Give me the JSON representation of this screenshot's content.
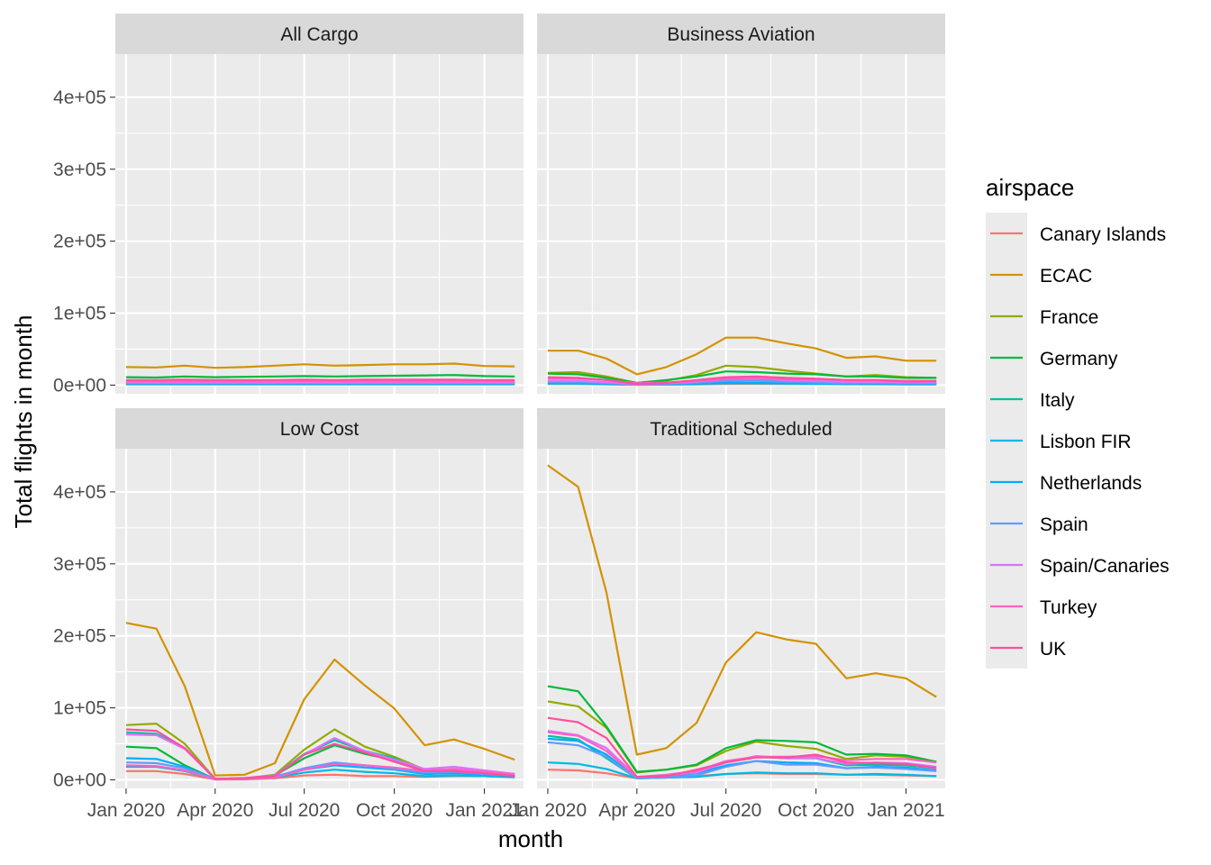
{
  "chart_data": {
    "type": "line",
    "xlabel": "month",
    "ylabel": "Total flights in month",
    "x": [
      "2020-01",
      "2020-02",
      "2020-03",
      "2020-04",
      "2020-05",
      "2020-06",
      "2020-07",
      "2020-08",
      "2020-09",
      "2020-10",
      "2020-11",
      "2020-12",
      "2021-01",
      "2021-02"
    ],
    "x_ticks": [
      {
        "value": "2020-01",
        "label": "Jan 2020"
      },
      {
        "value": "2020-04",
        "label": "Apr 2020"
      },
      {
        "value": "2020-07",
        "label": "Jul 2020"
      },
      {
        "value": "2020-10",
        "label": "Oct 2020"
      },
      {
        "value": "2021-01",
        "label": "Jan 2021"
      }
    ],
    "y_ticks": [
      {
        "value": 0,
        "label": "0e+00"
      },
      {
        "value": 100000,
        "label": "1e+05"
      },
      {
        "value": 200000,
        "label": "2e+05"
      },
      {
        "value": 300000,
        "label": "3e+05"
      },
      {
        "value": 400000,
        "label": "4e+05"
      }
    ],
    "ylim": [
      -12000,
      460000
    ],
    "xlim": [
      "2019-12-21",
      "2021-02-10"
    ],
    "grid": true,
    "legend": {
      "title": "airspace",
      "position": "right",
      "entries": [
        {
          "name": "Canary Islands",
          "color": "#F8766D"
        },
        {
          "name": "ECAC",
          "color": "#D39200"
        },
        {
          "name": "France",
          "color": "#93AA00"
        },
        {
          "name": "Germany",
          "color": "#00BA38"
        },
        {
          "name": "Italy",
          "color": "#00C19F"
        },
        {
          "name": "Lisbon FIR",
          "color": "#00B9E3"
        },
        {
          "name": "Netherlands",
          "color": "#00ADFA"
        },
        {
          "name": "Spain",
          "color": "#619CFF"
        },
        {
          "name": "Spain/Canaries",
          "color": "#DB72FB"
        },
        {
          "name": "Turkey",
          "color": "#FF61C3"
        },
        {
          "name": "UK",
          "color": "#FF4FA0"
        }
      ]
    },
    "panels": [
      {
        "title": "All Cargo",
        "series": [
          {
            "name": "Canary Islands",
            "values": [
              1000,
              1000,
              1000,
              900,
              900,
              900,
              900,
              900,
              900,
              900,
              900,
              900,
              900,
              900
            ]
          },
          {
            "name": "ECAC",
            "values": [
              25000,
              24500,
              27000,
              24000,
              25000,
              27000,
              29000,
              27000,
              28000,
              29000,
              29000,
              30000,
              26500,
              26000
            ]
          },
          {
            "name": "France",
            "values": [
              4000,
              4000,
              4000,
              4000,
              4000,
              4000,
              4000,
              4000,
              4000,
              4000,
              4000,
              4000,
              4000,
              4000
            ]
          },
          {
            "name": "Germany",
            "values": [
              11000,
              10500,
              12000,
              11000,
              11500,
              12000,
              12500,
              12000,
              12500,
              13000,
              13500,
              14000,
              12500,
              12000
            ]
          },
          {
            "name": "Italy",
            "values": [
              2000,
              2000,
              2000,
              2000,
              2000,
              2000,
              2000,
              2000,
              2000,
              2000,
              2000,
              2000,
              2000,
              2000
            ]
          },
          {
            "name": "Lisbon FIR",
            "values": [
              1500,
              1500,
              1500,
              1500,
              1500,
              1500,
              1500,
              1500,
              1500,
              1500,
              1500,
              1500,
              1500,
              1500
            ]
          },
          {
            "name": "Netherlands",
            "values": [
              2000,
              2000,
              2000,
              2000,
              2000,
              2000,
              2000,
              2000,
              2000,
              2000,
              2000,
              2000,
              2000,
              2000
            ]
          },
          {
            "name": "Spain",
            "values": [
              3000,
              3000,
              3000,
              3000,
              3000,
              3000,
              3000,
              3000,
              3000,
              3000,
              3000,
              3000,
              3000,
              3000
            ]
          },
          {
            "name": "Spain/Canaries",
            "values": [
              3500,
              3500,
              3500,
              3500,
              3500,
              3500,
              3500,
              3500,
              3500,
              3500,
              3500,
              3500,
              3500,
              3500
            ]
          },
          {
            "name": "Turkey",
            "values": [
              5000,
              5000,
              5000,
              5000,
              5000,
              5000,
              5000,
              5000,
              5000,
              5000,
              5000,
              5000,
              5000,
              5000
            ]
          },
          {
            "name": "UK",
            "values": [
              7000,
              7000,
              7500,
              7000,
              7000,
              7000,
              7500,
              7000,
              7500,
              7500,
              7500,
              7500,
              7000,
              7000
            ]
          }
        ]
      },
      {
        "title": "Business Aviation",
        "series": [
          {
            "name": "Canary Islands",
            "values": [
              1500,
              1500,
              1000,
              500,
              700,
              1000,
              1500,
              1500,
              1500,
              1500,
              1200,
              1200,
              1000,
              1000
            ]
          },
          {
            "name": "ECAC",
            "values": [
              48000,
              48000,
              37000,
              15000,
              25000,
              43000,
              66000,
              66000,
              58000,
              51000,
              38000,
              40000,
              34000,
              34000
            ]
          },
          {
            "name": "France",
            "values": [
              17000,
              18000,
              12000,
              3000,
              6000,
              14000,
              27000,
              25000,
              20000,
              16000,
              12000,
              14000,
              11000,
              10000
            ]
          },
          {
            "name": "Germany",
            "values": [
              16000,
              15000,
              10000,
              3000,
              7000,
              12000,
              19000,
              18000,
              16000,
              15000,
              12000,
              12000,
              10000,
              10000
            ]
          },
          {
            "name": "Italy",
            "values": [
              5000,
              5000,
              3500,
              1000,
              2000,
              4000,
              7000,
              6500,
              5000,
              4000,
              3000,
              3000,
              2500,
              2500
            ]
          },
          {
            "name": "Lisbon FIR",
            "values": [
              2000,
              2000,
              1500,
              500,
              800,
              1500,
              2500,
              2500,
              2000,
              1800,
              1500,
              1500,
              1200,
              1200
            ]
          },
          {
            "name": "Netherlands",
            "values": [
              3000,
              3000,
              2000,
              600,
              1200,
              2200,
              3500,
              3300,
              2800,
              2400,
              2000,
              2000,
              1800,
              1800
            ]
          },
          {
            "name": "Spain",
            "values": [
              4000,
              4000,
              3000,
              800,
              1500,
              3500,
              6000,
              6000,
              4500,
              3500,
              2800,
              3000,
              2500,
              2500
            ]
          },
          {
            "name": "Spain/Canaries",
            "values": [
              6000,
              6000,
              4000,
              1000,
              2500,
              5000,
              9000,
              9000,
              7000,
              6000,
              4500,
              4500,
              4000,
              4000
            ]
          },
          {
            "name": "Turkey",
            "values": [
              9000,
              9000,
              7000,
              2500,
              3500,
              6000,
              8000,
              9000,
              8000,
              8000,
              7000,
              7000,
              6000,
              6000
            ]
          },
          {
            "name": "UK",
            "values": [
              11000,
              10000,
              7000,
              1500,
              3000,
              7000,
              11000,
              12000,
              10000,
              9000,
              7000,
              7000,
              5000,
              5500
            ]
          }
        ]
      },
      {
        "title": "Low Cost",
        "series": [
          {
            "name": "Canary Islands",
            "values": [
              12000,
              12000,
              8000,
              500,
              500,
              2000,
              6000,
              7000,
              5000,
              5000,
              4000,
              5000,
              5000,
              4000
            ]
          },
          {
            "name": "ECAC",
            "values": [
              218000,
              210000,
              130000,
              6000,
              7000,
              23000,
              112000,
              167000,
              131000,
              99000,
              48000,
              56000,
              43000,
              28000
            ]
          },
          {
            "name": "France",
            "values": [
              76000,
              78000,
              50000,
              1000,
              2000,
              7000,
              42000,
              70000,
              46000,
              32000,
              14000,
              14000,
              12000,
              7000
            ]
          },
          {
            "name": "Germany",
            "values": [
              46000,
              44000,
              20000,
              800,
              1500,
              6000,
              30000,
              48000,
              36000,
              27000,
              12000,
              12000,
              8000,
              5000
            ]
          },
          {
            "name": "Italy",
            "values": [
              66000,
              64000,
              44000,
              1000,
              2000,
              6000,
              36000,
              55000,
              40000,
              30000,
              10000,
              12000,
              9000,
              6000
            ]
          },
          {
            "name": "Lisbon FIR",
            "values": [
              18000,
              18000,
              12000,
              500,
              800,
              3000,
              10000,
              14000,
              11000,
              9000,
              5000,
              6000,
              5000,
              3500
            ]
          },
          {
            "name": "Netherlands",
            "values": [
              30000,
              29000,
              18000,
              800,
              1500,
              5000,
              14000,
              20000,
              17000,
              14000,
              8000,
              9000,
              7000,
              5000
            ]
          },
          {
            "name": "Spain",
            "values": [
              24000,
              23000,
              16000,
              800,
              1500,
              4000,
              16000,
              24000,
              20000,
              15000,
              10000,
              11000,
              8000,
              6000
            ]
          },
          {
            "name": "Spain/Canaries",
            "values": [
              63000,
              62000,
              43000,
              1000,
              2000,
              6000,
              35000,
              58000,
              40000,
              28000,
              15000,
              18000,
              13000,
              8000
            ]
          },
          {
            "name": "Turkey",
            "values": [
              20000,
              19000,
              13000,
              500,
              1000,
              3000,
              14000,
              22000,
              20000,
              17000,
              12000,
              15000,
              11000,
              8000
            ]
          },
          {
            "name": "UK",
            "values": [
              70000,
              68000,
              44000,
              1500,
              2500,
              5000,
              35000,
              50000,
              38000,
              25000,
              12000,
              12000,
              9000,
              5000
            ]
          }
        ]
      },
      {
        "title": "Traditional Scheduled",
        "series": [
          {
            "name": "Canary Islands",
            "values": [
              14000,
              13000,
              9000,
              2000,
              3000,
              5000,
              8000,
              9000,
              8000,
              8000,
              7000,
              7000,
              6000,
              5000
            ]
          },
          {
            "name": "ECAC",
            "values": [
              437000,
              407000,
              260000,
              35000,
              44000,
              79000,
              163000,
              205000,
              195000,
              189000,
              141000,
              148000,
              141000,
              115000
            ]
          },
          {
            "name": "France",
            "values": [
              109000,
              102000,
              72000,
              10000,
              14000,
              20000,
              40000,
              53000,
              47000,
              43000,
              29000,
              34000,
              32000,
              25000
            ]
          },
          {
            "name": "Germany",
            "values": [
              130000,
              123000,
              74000,
              11000,
              14000,
              21000,
              44000,
              55000,
              54000,
              52000,
              35000,
              36000,
              34000,
              25000
            ]
          },
          {
            "name": "Italy",
            "values": [
              61000,
              56000,
              30000,
              2000,
              4000,
              10000,
              25000,
              32000,
              30000,
              30000,
              20000,
              21000,
              20000,
              16000
            ]
          },
          {
            "name": "Lisbon FIR",
            "values": [
              24000,
              22000,
              15000,
              2000,
              3000,
              4000,
              8000,
              10000,
              9000,
              9000,
              7000,
              8000,
              7000,
              5000
            ]
          },
          {
            "name": "Netherlands",
            "values": [
              57000,
              54000,
              35000,
              3000,
              5000,
              9000,
              20000,
              26000,
              24000,
              23000,
              16000,
              18000,
              17000,
              13000
            ]
          },
          {
            "name": "Spain",
            "values": [
              52000,
              48000,
              32000,
              2000,
              3000,
              6000,
              18000,
              26000,
              21000,
              21000,
              16000,
              17000,
              15000,
              12000
            ]
          },
          {
            "name": "Spain/Canaries",
            "values": [
              68000,
              62000,
              44000,
              4000,
              6000,
              10000,
              24000,
              33000,
              30000,
              30000,
              22000,
              24000,
              23000,
              18000
            ]
          },
          {
            "name": "Turkey",
            "values": [
              66000,
              61000,
              40000,
              4000,
              7000,
              12000,
              26000,
              32000,
              32000,
              33000,
              27000,
              29000,
              29000,
              24000
            ]
          },
          {
            "name": "UK",
            "values": [
              86000,
              80000,
              58000,
              4000,
              5000,
              14000,
              24000,
              31000,
              31000,
              35000,
              24000,
              23000,
              22000,
              16000
            ]
          }
        ]
      }
    ]
  }
}
